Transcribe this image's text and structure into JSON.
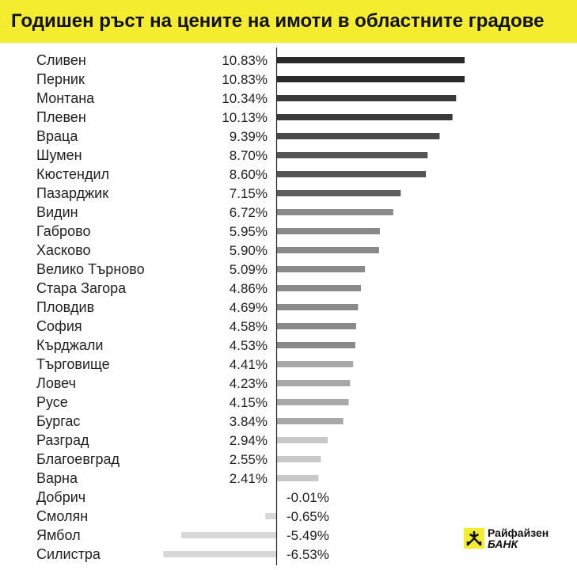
{
  "header": {
    "title": "Годишен ръст на цените на имоти в областните градове"
  },
  "chart_data": {
    "type": "bar",
    "orientation": "horizontal",
    "title": "Годишен ръст на цените на имоти в областните градове",
    "categories": [
      "Сливен",
      "Перник",
      "Монтана",
      "Плевен",
      "Враца",
      "Шумен",
      "Кюстендил",
      "Пазарджик",
      "Видин",
      "Габрово",
      "Хасково",
      "Велико Търново",
      "Стара Загора",
      "Пловдив",
      "София",
      "Кърджали",
      "Търговище",
      "Ловеч",
      "Русе",
      "Бургас",
      "Разград",
      "Благоевград",
      "Варна",
      "Добрич",
      "Смолян",
      "Ямбол",
      "Силистра"
    ],
    "values": [
      10.83,
      10.83,
      10.34,
      10.13,
      9.39,
      8.7,
      8.6,
      7.15,
      6.72,
      5.95,
      5.9,
      5.09,
      4.86,
      4.69,
      4.58,
      4.53,
      4.41,
      4.23,
      4.15,
      3.84,
      2.94,
      2.55,
      2.41,
      -0.01,
      -0.65,
      -5.49,
      -6.53
    ],
    "value_labels": [
      "10.83%",
      "10.83%",
      "10.34%",
      "10.13%",
      "9.39%",
      "8.70%",
      "8.60%",
      "7.15%",
      "6.72%",
      "5.95%",
      "5.90%",
      "5.09%",
      "4.86%",
      "4.69%",
      "4.58%",
      "4.53%",
      "4.41%",
      "4.23%",
      "4.15%",
      "3.84%",
      "2.94%",
      "2.55%",
      "2.41%",
      "-0.01%",
      "-0.65%",
      "-5.49%",
      "-6.53%"
    ],
    "bar_colors": [
      "#2b2b2b",
      "#2b2b2b",
      "#3a3a3a",
      "#3a3a3a",
      "#4a4a4a",
      "#555555",
      "#555555",
      "#5e5e5e",
      "#8a8a8a",
      "#8a8a8a",
      "#8a8a8a",
      "#8a8a8a",
      "#8a8a8a",
      "#8a8a8a",
      "#8a8a8a",
      "#8a8a8a",
      "#a8a8a8",
      "#a8a8a8",
      "#a8a8a8",
      "#a8a8a8",
      "#c8c8c8",
      "#c8c8c8",
      "#c8c8c8",
      "#d8d8d8",
      "#d8d8d8",
      "#d8d8d8",
      "#d8d8d8"
    ],
    "axis_color": "#222222",
    "xlim": [
      -6.53,
      10.83
    ],
    "grid": false,
    "legend": "none"
  },
  "logo": {
    "line1": "Райфайзен",
    "line2": "БАНК",
    "icon": "raiffeisen-cross-icon",
    "colors": {
      "background": "#f4ec2e",
      "mark": "#111111"
    }
  }
}
